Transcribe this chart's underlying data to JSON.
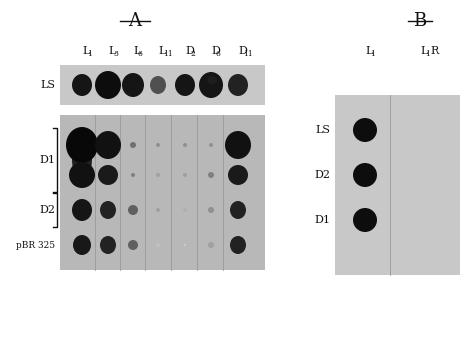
{
  "figsize": [
    4.74,
    3.4
  ],
  "dpi": 100,
  "white": "#ffffff",
  "dark": "#1a1a1a",
  "panel_a_title": "A",
  "panel_b_title": "B",
  "col_labels_a": [
    "L",
    "L",
    "L",
    "L",
    "D",
    "D",
    "D"
  ],
  "col_subs_a": [
    "1",
    "3",
    "6",
    "11",
    "2",
    "6",
    "11"
  ],
  "row_label_ls": "LS",
  "row_labels_bot": [
    "D1",
    "D2",
    "pBR 325"
  ],
  "col_labels_b": [
    "L",
    "L"
  ],
  "col_subs_b": [
    "1",
    "1"
  ],
  "col_b2_extra": "R",
  "row_labels_b": [
    "LS",
    "D2",
    "D1"
  ],
  "strip_top_bg": "#c8c8c8",
  "strip_bot_bg": "#b8b8b8",
  "strip_b_bg": "#c8c8c8",
  "divider_color": "#999999",
  "text_color": "#111111",
  "dot_dark": "#101010",
  "dot_med": "#383838",
  "dot_light": "#686868",
  "dot_vlight": "#aaaaaa"
}
